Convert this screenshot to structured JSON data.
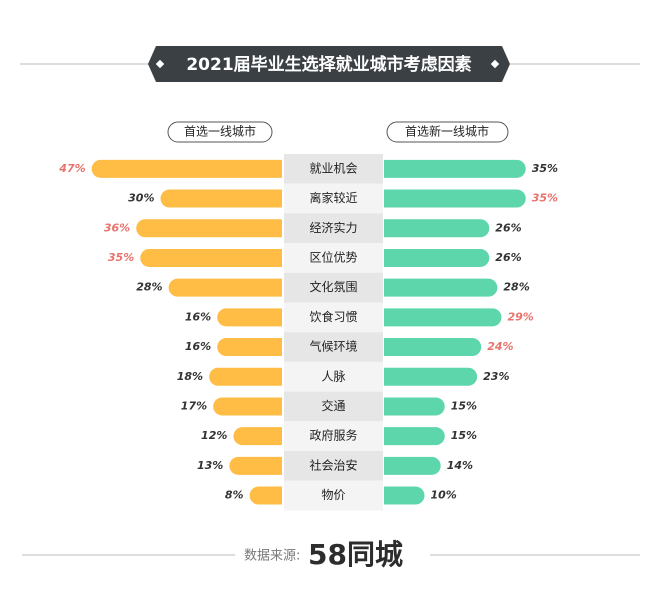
{
  "chart_data": {
    "type": "butterfly",
    "title": "2021届毕业生选择就业城市考虑因素",
    "categories": [
      "就业机会",
      "离家较近",
      "经济实力",
      "区位优势",
      "文化氛围",
      "饮食习惯",
      "气候环境",
      "人脉",
      "交通",
      "政府服务",
      "社会治安",
      "物价"
    ],
    "series": [
      {
        "name": "首选一线城市",
        "color": "#ffbd45",
        "values": [
          47,
          30,
          36,
          35,
          28,
          16,
          16,
          18,
          17,
          12,
          13,
          8
        ],
        "value_labels": [
          "47%",
          "30%",
          "36%",
          "35%",
          "28%",
          "16%",
          "16%",
          "18%",
          "17%",
          "12%",
          "13%",
          "8%"
        ],
        "value_label_colors": [
          "#e8736c",
          "#333333",
          "#e8736c",
          "#e8736c",
          "#333333",
          "#333333",
          "#333333",
          "#333333",
          "#333333",
          "#333333",
          "#333333",
          "#333333"
        ]
      },
      {
        "name": "首选新一线城市",
        "color": "#5ed6ab",
        "values": [
          35,
          35,
          26,
          26,
          28,
          29,
          24,
          23,
          15,
          15,
          14,
          10
        ],
        "value_labels": [
          "35%",
          "35%",
          "26%",
          "26%",
          "28%",
          "29%",
          "24%",
          "23%",
          "15%",
          "15%",
          "14%",
          "10%"
        ],
        "value_label_colors": [
          "#333333",
          "#e8736c",
          "#333333",
          "#333333",
          "#333333",
          "#e8736c",
          "#e8736c",
          "#333333",
          "#333333",
          "#333333",
          "#333333",
          "#333333"
        ]
      }
    ],
    "source_label": "数据来源:",
    "source": "58同城"
  }
}
